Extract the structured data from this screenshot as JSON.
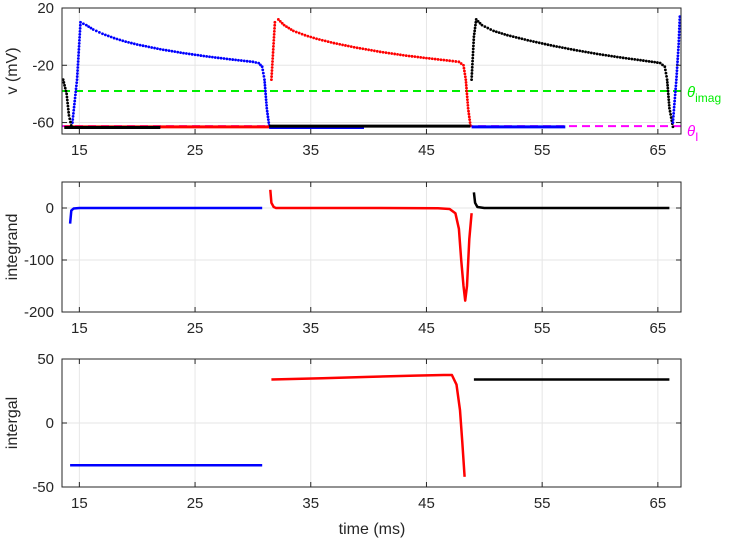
{
  "figure": {
    "xlabel": "time (ms)",
    "colors": {
      "blue": "#0000ff",
      "red": "#ff0000",
      "black": "#000000",
      "green": "#00ee00",
      "magenta": "#ff00ff",
      "grid": "#e6e6e6",
      "axis": "#262626"
    }
  },
  "chart_data": [
    {
      "type": "scatter",
      "ylabel": "v (mV)",
      "xlim": [
        13.5,
        67
      ],
      "ylim": [
        -68,
        20
      ],
      "xticks": [
        15,
        25,
        35,
        45,
        55,
        65
      ],
      "yticks": [
        20,
        -20,
        -60
      ],
      "grid": true,
      "series": [
        {
          "color": "blue",
          "style": "dots",
          "points": [
            [
              14.4,
              -60
            ],
            [
              14.8,
              -30
            ],
            [
              15.1,
              10
            ],
            [
              15.6,
              8
            ],
            [
              16.2,
              5
            ],
            [
              17,
              2
            ],
            [
              18,
              -1
            ],
            [
              19,
              -3.5
            ],
            [
              20,
              -5.5
            ],
            [
              22,
              -8.8
            ],
            [
              24,
              -11.5
            ],
            [
              26,
              -13.8
            ],
            [
              28,
              -15.8
            ],
            [
              30,
              -17.6
            ],
            [
              30.5,
              -18.5
            ],
            [
              30.8,
              -21
            ],
            [
              31,
              -30
            ],
            [
              31.2,
              -50
            ],
            [
              31.4,
              -62
            ]
          ],
          "flat": [
            [
              31.4,
              -63.5
            ],
            [
              39.6,
              -63.5
            ]
          ]
        },
        {
          "color": "red",
          "style": "dots",
          "points": [
            [
              31.6,
              -30
            ],
            [
              31.9,
              10
            ],
            [
              32.2,
              12
            ],
            [
              32.7,
              8
            ],
            [
              33.5,
              4
            ],
            [
              34.5,
              1
            ],
            [
              35.5,
              -1.5
            ],
            [
              37,
              -4.5
            ],
            [
              39,
              -7.8
            ],
            [
              41,
              -10.6
            ],
            [
              43,
              -13
            ],
            [
              45,
              -15
            ],
            [
              47,
              -16.8
            ],
            [
              47.8,
              -17.6
            ],
            [
              48.2,
              -20
            ],
            [
              48.4,
              -30
            ],
            [
              48.6,
              -50
            ],
            [
              48.8,
              -62
            ]
          ],
          "flat": [
            [
              13.7,
              -63
            ],
            [
              31.4,
              -63
            ]
          ]
        },
        {
          "color": "black",
          "style": "dots",
          "points": [
            [
              48.9,
              -30
            ],
            [
              49.1,
              0
            ],
            [
              49.3,
              12
            ],
            [
              49.8,
              8
            ],
            [
              50.8,
              4
            ],
            [
              52,
              1
            ],
            [
              54,
              -3
            ],
            [
              56,
              -6.5
            ],
            [
              58,
              -9.6
            ],
            [
              60,
              -12.4
            ],
            [
              62,
              -14.8
            ],
            [
              64,
              -17
            ],
            [
              65.2,
              -18.4
            ],
            [
              65.6,
              -21
            ],
            [
              65.8,
              -30
            ],
            [
              66,
              -50
            ],
            [
              66.3,
              -63
            ]
          ],
          "flat": [
            [
              13.7,
              -63.5
            ],
            [
              22,
              -63.5
            ]
          ]
        },
        {
          "color": "blue",
          "style": "dots",
          "points": [
            [
              66.3,
              -60
            ],
            [
              66.6,
              -30
            ],
            [
              66.8,
              -5
            ],
            [
              66.9,
              14
            ]
          ],
          "flat": [
            [
              48.9,
              -63
            ],
            [
              57,
              -63
            ]
          ]
        },
        {
          "color": "black",
          "style": "dots",
          "points": [
            [
              13.6,
              -30
            ],
            [
              13.9,
              -40
            ],
            [
              14.1,
              -55
            ],
            [
              14.3,
              -62
            ]
          ],
          "flat": [
            [
              31.4,
              -62.5
            ],
            [
              48.8,
              -62.5
            ]
          ]
        }
      ],
      "hlines": [
        {
          "y": -38,
          "color": "green",
          "dash": true,
          "label_base": "θ",
          "label_sub": "imag"
        },
        {
          "y": -62.5,
          "color": "magenta",
          "dash": true,
          "label_base": "θ",
          "label_sub": "I"
        }
      ]
    },
    {
      "type": "line",
      "ylabel": "integrand",
      "xlim": [
        13.5,
        67
      ],
      "ylim": [
        -200,
        50
      ],
      "xticks": [
        15,
        25,
        35,
        45,
        55,
        65
      ],
      "yticks": [
        0,
        -100,
        -200
      ],
      "grid": true,
      "series": [
        {
          "color": "blue",
          "points": [
            [
              14.2,
              -30
            ],
            [
              14.3,
              -5
            ],
            [
              14.5,
              -1
            ],
            [
              15,
              0
            ],
            [
              20,
              0
            ],
            [
              25,
              0
            ],
            [
              30.8,
              0
            ]
          ]
        },
        {
          "color": "red",
          "points": [
            [
              31.5,
              35
            ],
            [
              31.6,
              10
            ],
            [
              31.8,
              2
            ],
            [
              32,
              0
            ],
            [
              40,
              0
            ],
            [
              46,
              -0.5
            ],
            [
              47,
              -2
            ],
            [
              47.5,
              -10
            ],
            [
              47.8,
              -40
            ],
            [
              48,
              -100
            ],
            [
              48.2,
              -150
            ],
            [
              48.35,
              -178
            ],
            [
              48.5,
              -150
            ],
            [
              48.7,
              -60
            ],
            [
              48.9,
              -10
            ]
          ]
        },
        {
          "color": "black",
          "points": [
            [
              49.1,
              30
            ],
            [
              49.2,
              10
            ],
            [
              49.4,
              2
            ],
            [
              50,
              0
            ],
            [
              58,
              0
            ],
            [
              66,
              0
            ]
          ]
        }
      ]
    },
    {
      "type": "line",
      "ylabel": "intergal",
      "xlim": [
        13.5,
        67
      ],
      "ylim": [
        -50,
        50
      ],
      "xticks": [
        15,
        25,
        35,
        45,
        55,
        65
      ],
      "yticks": [
        50,
        0,
        -50
      ],
      "grid": true,
      "series": [
        {
          "color": "blue",
          "points": [
            [
              14.2,
              -33
            ],
            [
              30.8,
              -33
            ]
          ]
        },
        {
          "color": "red",
          "points": [
            [
              31.6,
              34
            ],
            [
              36,
              35
            ],
            [
              40,
              36
            ],
            [
              44,
              37
            ],
            [
              46.5,
              37.5
            ],
            [
              47.2,
              37.5
            ],
            [
              47.6,
              30
            ],
            [
              47.9,
              10
            ],
            [
              48.1,
              -15
            ],
            [
              48.3,
              -42
            ]
          ]
        },
        {
          "color": "black",
          "points": [
            [
              49.1,
              34
            ],
            [
              66,
              34
            ]
          ]
        }
      ]
    }
  ]
}
